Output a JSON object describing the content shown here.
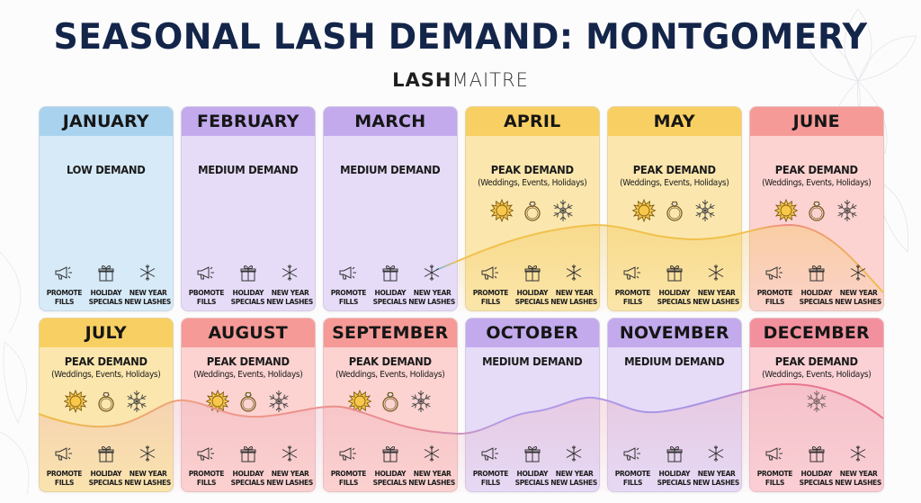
{
  "header": {
    "title": "SEASONAL LASH DEMAND: MONTGOMERY",
    "brand_bold": "LASH",
    "brand_light": "MAITRE"
  },
  "colors": {
    "title": "#14254a",
    "low": {
      "head": "#a9d2ee",
      "body": "#d6eaf8"
    },
    "medium": {
      "head": "#c2aaed",
      "body": "#e6dcf8"
    },
    "peak_yellow": {
      "head": "#f8cf62",
      "body": "#fbe7ae"
    },
    "peak_red": {
      "head": "#f59a97",
      "body": "#fcd3d1"
    },
    "peak_pink": {
      "head": "#f3909e",
      "body": "#fbd1d6"
    }
  },
  "actions": [
    {
      "icon": "megaphone-icon",
      "line1": "PROMOTE",
      "line2": "FILLS"
    },
    {
      "icon": "gift-icon",
      "line1": "HOLIDAY",
      "line2": "SPECIALS"
    },
    {
      "icon": "snowflake-icon",
      "line1": "NEW YEAR",
      "line2": "NEW LASHES"
    }
  ],
  "months": [
    {
      "name": "JANUARY",
      "demand": "LOW DEMAND",
      "sub": "",
      "level": "low",
      "theme": "low",
      "icons": []
    },
    {
      "name": "FEBRUARY",
      "demand": "MEDIUM DEMAND",
      "sub": "",
      "level": "medium",
      "theme": "medium",
      "icons": [],
      "action_label_override": "PBOMOTE"
    },
    {
      "name": "MARCH",
      "demand": "MEDIUM DEMAND",
      "sub": "",
      "level": "medium",
      "theme": "medium",
      "icons": []
    },
    {
      "name": "APRIL",
      "demand": "PEAK DEMAND",
      "sub": "(Weddings, Events, Holidays)",
      "level": "peak",
      "theme": "peak_yellow",
      "icons": [
        "sun-icon",
        "ring-icon",
        "snowflake-icon"
      ]
    },
    {
      "name": "MAY",
      "demand": "PEAK DEMAND",
      "sub": "(Weddings, Events, Holidays)",
      "level": "peak",
      "theme": "peak_yellow",
      "icons": [
        "sun-icon",
        "ring-icon",
        "snowflake-icon"
      ]
    },
    {
      "name": "JUNE",
      "demand": "PEAK DEMAND",
      "sub": "(Weddings, Events, Holidays)",
      "level": "peak",
      "theme": "peak_red",
      "icons": [
        "sun-icon",
        "ring-icon",
        "snowflake-icon"
      ]
    },
    {
      "name": "JULY",
      "demand": "PEAK DEMAND",
      "sub": "(Weddings, Events, Holidays)",
      "level": "peak",
      "theme": "peak_yellow",
      "icons": [
        "sun-icon",
        "ring-icon",
        "snowflake-icon"
      ]
    },
    {
      "name": "AUGUST",
      "demand": "PEAK DEMAND",
      "sub": "(Weddings, Events, Holidays)",
      "level": "peak",
      "theme": "peak_red",
      "icons": [
        "sun-icon",
        "ring-icon",
        "snowflake-icon"
      ]
    },
    {
      "name": "SEPTEMBER",
      "demand": "PEAK DEMAND",
      "sub": "(Weddings, Events, Holidays)",
      "level": "peak",
      "theme": "peak_red",
      "icons": [
        "sun-icon",
        "ring-icon",
        "snowflake-icon"
      ]
    },
    {
      "name": "OCTOBER",
      "demand": "MEDIUM DEMAND",
      "sub": "",
      "level": "medium",
      "theme": "medium",
      "icons": []
    },
    {
      "name": "NOVEMBER",
      "demand": "MEDIUM DEMAND",
      "sub": "",
      "level": "medium",
      "theme": "medium",
      "icons": []
    },
    {
      "name": "DECEMBER",
      "demand": "PEAK DEMAND",
      "sub": "(Weddings, Events, Holidays)",
      "level": "peak",
      "theme": "peak_pink",
      "icons": [
        "snowflake-icon"
      ]
    }
  ]
}
